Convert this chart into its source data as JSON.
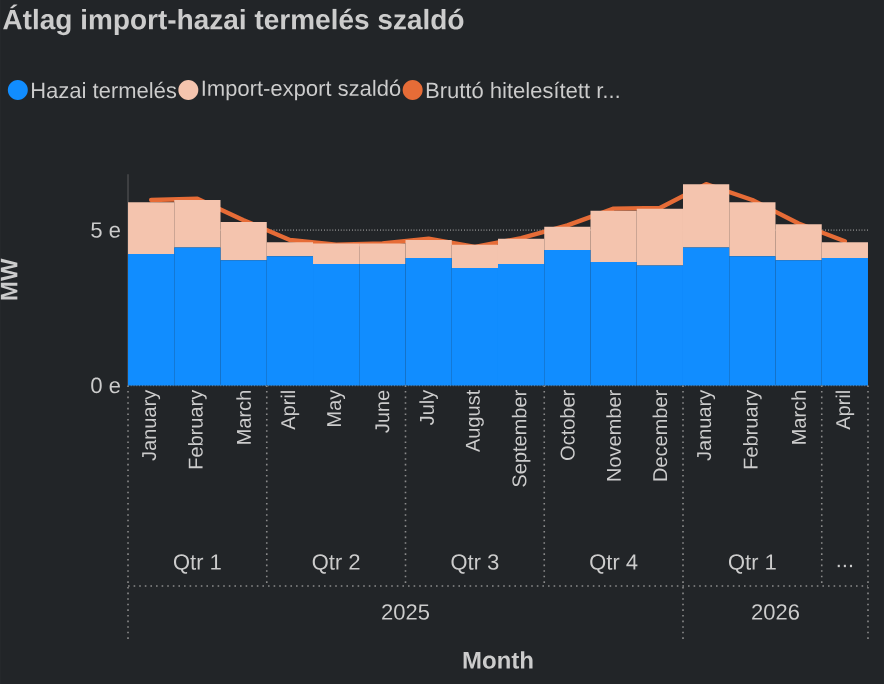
{
  "chart_data": {
    "type": "bar",
    "stacked": true,
    "title": "Átlag import-hazai termelés szaldó",
    "ylabel": "MW",
    "categories": [
      "January",
      "February",
      "March",
      "April",
      "May",
      "June",
      "July",
      "August",
      "September",
      "October",
      "November",
      "December",
      "January",
      "February",
      "March",
      "April"
    ],
    "series": [
      {
        "name": "Hazai termelés",
        "color": "#118dff",
        "values": [
          4.23,
          4.44,
          4.03,
          4.16,
          3.91,
          3.91,
          4.1,
          3.78,
          3.91,
          4.36,
          3.97,
          3.86,
          4.44,
          4.16,
          4.03,
          4.1
        ]
      },
      {
        "name": "Import-export szaldó",
        "color": "#f4c4ae",
        "values": [
          1.67,
          1.53,
          1.23,
          0.45,
          0.66,
          0.66,
          0.58,
          0.75,
          0.81,
          0.75,
          1.65,
          1.83,
          2.04,
          1.74,
          1.16,
          0.51
        ]
      },
      {
        "name": "Bruttó hitelesített r...",
        "color": "#e66c37",
        "type": "line",
        "values": [
          5.97,
          6.01,
          5.32,
          4.68,
          4.53,
          4.57,
          4.72,
          4.46,
          4.74,
          5.15,
          5.69,
          5.71,
          6.48,
          5.97,
          5.21,
          4.64
        ]
      }
    ],
    "ylim": [
      0,
      6.8
    ],
    "yticks": [
      {
        "value": 0,
        "label": "0 e"
      },
      {
        "value": 5,
        "label": "5 e"
      }
    ],
    "grid": "y",
    "legend": "top left",
    "annotations": [
      "Qtr 1",
      "Qtr 2",
      "Qtr 3",
      "Qtr 4",
      "Qtr 1",
      "...",
      "2025",
      "2026",
      "Month"
    ]
  }
}
